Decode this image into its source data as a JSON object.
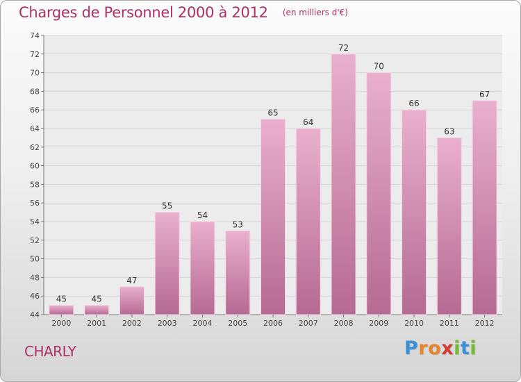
{
  "header": {
    "title": "Charges de Personnel 2000 à 2012",
    "subtitle": "(en milliers d'€)"
  },
  "location": "CHARLY",
  "logo": {
    "letters": [
      "P",
      "r",
      "o",
      "x",
      "i",
      "t",
      "i"
    ],
    "colors": [
      "#3d8fd4",
      "#e8852a",
      "#e8852a",
      "#d23c2c",
      "#7ab83a",
      "#3d8fd4",
      "#7ab83a"
    ]
  },
  "colors": {
    "bar": "#d680ad",
    "bar_light": "#e9b0cd",
    "bar_dark": "#b56a92",
    "title": "#b02f69"
  },
  "chart_data": {
    "type": "bar",
    "title": "Charges de Personnel 2000 à 2012",
    "subtitle": "(en milliers d'€)",
    "categories": [
      "2000",
      "2001",
      "2002",
      "2003",
      "2004",
      "2005",
      "2006",
      "2007",
      "2008",
      "2009",
      "2010",
      "2011",
      "2012"
    ],
    "values": [
      45,
      45,
      47,
      55,
      54,
      53,
      65,
      64,
      72,
      70,
      66,
      63,
      67
    ],
    "ylim": [
      44,
      74
    ],
    "yticks": [
      44,
      46,
      48,
      50,
      52,
      54,
      56,
      58,
      60,
      62,
      64,
      66,
      68,
      70,
      72,
      74
    ],
    "grid": true,
    "legend": "none"
  }
}
